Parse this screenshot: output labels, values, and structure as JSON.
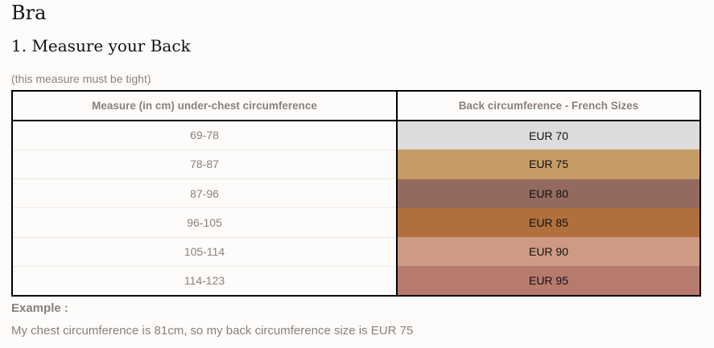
{
  "page": {
    "title": "Bra",
    "subtitle": "1. Measure your Back",
    "note": "(this measure must be tight)"
  },
  "table": {
    "headers": [
      "Measure (in cm) under-chest circumference",
      "Back circumference - French Sizes"
    ],
    "rows": [
      {
        "measure": "69-78",
        "size": "EUR 70",
        "color": "#dcdcdc"
      },
      {
        "measure": "78-87",
        "size": "EUR 75",
        "color": "#c69c66"
      },
      {
        "measure": "87-96",
        "size": "EUR 80",
        "color": "#946a60"
      },
      {
        "measure": "96-105",
        "size": "EUR 85",
        "color": "#b06f3c"
      },
      {
        "measure": "105-114",
        "size": "EUR 90",
        "color": "#cd9b83"
      },
      {
        "measure": "114-123",
        "size": "EUR 95",
        "color": "#b77b6d"
      }
    ]
  },
  "example": {
    "label": "Example :",
    "text": "My chest circumference is 81cm, so my back circumference size is EUR 75"
  }
}
